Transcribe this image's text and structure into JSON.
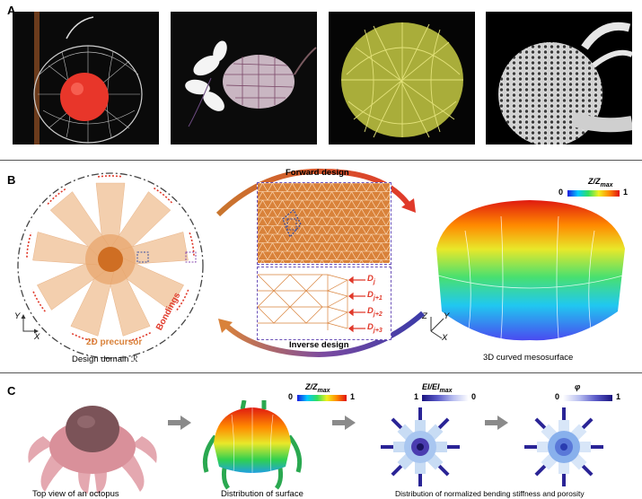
{
  "panels": {
    "A": {
      "label": "A"
    },
    "B": {
      "label": "B",
      "forward_design": "Forward design",
      "inverse_design": "Inverse design",
      "design_domain": "Design domain ℛ",
      "precursor": "2D precursor",
      "bondings": "Bondings",
      "mesosurface": "3D curved mesosurface",
      "colorbar": {
        "title": "Z/Z",
        "title_sub": "max",
        "min": "0",
        "max": "1"
      },
      "forces": [
        "D",
        "D",
        "D",
        "D"
      ],
      "force_subs": [
        "j",
        "j+1",
        "j+2",
        "j+3"
      ],
      "axes_left": {
        "y": "Y",
        "x": "X"
      },
      "axes_right": {
        "z": "Z",
        "y": "Y",
        "x": "X"
      }
    },
    "C": {
      "label": "C",
      "colorbars": [
        {
          "title": "Z/Z",
          "sub": "max",
          "min": "0",
          "max": "1"
        },
        {
          "title": "EI/EI",
          "sub": "max",
          "min": "1",
          "max": "0"
        },
        {
          "title": "φ",
          "sub": "",
          "min": "0",
          "max": "1"
        }
      ],
      "captions": [
        "Top view of an octopus",
        "Distribution of surface",
        "Distribution of normalized bending stiffness and porosity"
      ]
    }
  },
  "colors": {
    "precursor": "#d9823a",
    "bonding": "#e0392a",
    "frame": "#6a50b8",
    "arrow_red": "#e0392a",
    "arrow_purple": "#5b3fa8"
  }
}
